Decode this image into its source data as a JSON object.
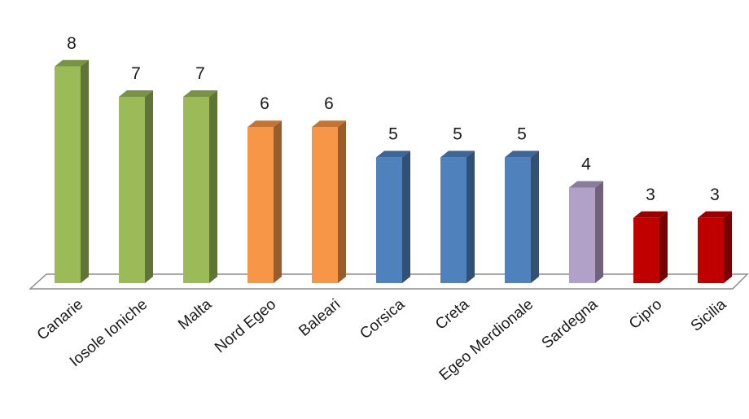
{
  "chart_data": {
    "type": "bar",
    "categories": [
      "Canarie",
      "Iosole Ioniche",
      "Malta",
      "Nord Egeo",
      "Baleari",
      "Corsica",
      "Creta",
      "Egeo Merdionale",
      "Sardegna",
      "Cipro",
      "Sicilia"
    ],
    "values": [
      8,
      7,
      7,
      6,
      6,
      5,
      5,
      5,
      4,
      3,
      3
    ],
    "data_labels": [
      "8",
      "7",
      "7",
      "6",
      "6",
      "5",
      "5",
      "5",
      "4",
      "3",
      "3"
    ],
    "bar_colors": [
      "#9bbb59",
      "#9bbb59",
      "#9bbb59",
      "#f79646",
      "#f79646",
      "#4f81bd",
      "#4f81bd",
      "#4f81bd",
      "#b1a0c7",
      "#c00000",
      "#c00000"
    ],
    "style": "3d-column",
    "title": "",
    "xlabel": "",
    "ylabel": "",
    "grid": false,
    "legend": "none"
  }
}
